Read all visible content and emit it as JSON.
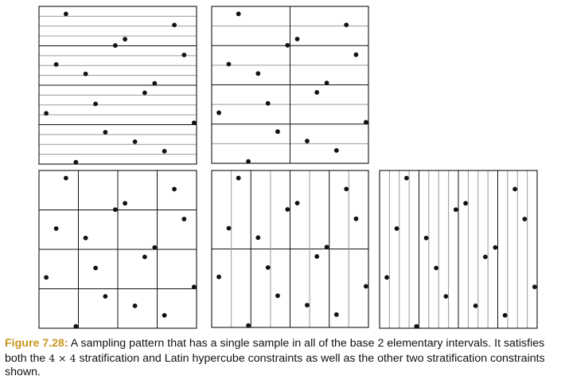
{
  "caption": {
    "label": "Figure 7.28:",
    "text_1": " A sampling pattern that has a single sample in all of the base 2 elementary intervals. It satisfies both the ",
    "math": "4 × 4",
    "text_2": " stratification and Latin hypercube constraints as well as the other two stratification constraints shown."
  },
  "colors": {
    "caption_label": "#c8961e",
    "dots": "#111111",
    "major_line": "#111111",
    "minor_line": "#9a9a9a"
  },
  "samples": [
    [
      0.171,
      0.952
    ],
    [
      0.859,
      0.882
    ],
    [
      0.546,
      0.792
    ],
    [
      0.484,
      0.752
    ],
    [
      0.921,
      0.692
    ],
    [
      0.109,
      0.632
    ],
    [
      0.296,
      0.572
    ],
    [
      0.734,
      0.512
    ],
    [
      0.671,
      0.452
    ],
    [
      0.359,
      0.382
    ],
    [
      0.046,
      0.322
    ],
    [
      0.984,
      0.262
    ],
    [
      0.421,
      0.202
    ],
    [
      0.609,
      0.142
    ],
    [
      0.796,
      0.082
    ],
    [
      0.234,
      0.012
    ]
  ],
  "panels": [
    {
      "name": "panel-1x16-stratification",
      "cols": 1,
      "rows": 16
    },
    {
      "name": "panel-2x8-stratification",
      "cols": 2,
      "rows": 8
    },
    {
      "name": "panel-4x4-stratification",
      "cols": 4,
      "rows": 4
    },
    {
      "name": "panel-8x2-stratification",
      "cols": 8,
      "rows": 2
    },
    {
      "name": "panel-16x1-stratification",
      "cols": 16,
      "rows": 1
    }
  ]
}
